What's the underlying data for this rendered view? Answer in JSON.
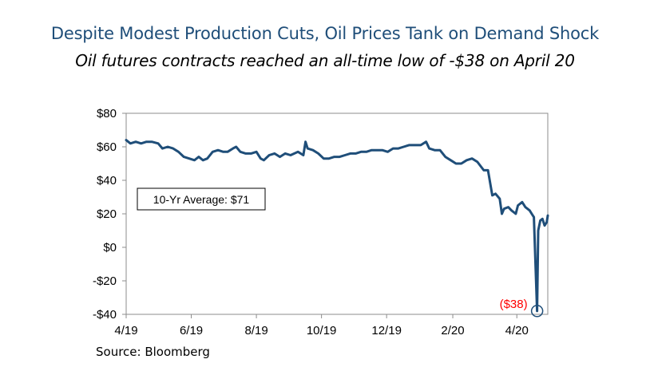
{
  "title": "Despite Modest Production Cuts, Oil Prices Tank on Demand Shock",
  "subtitle": "Oil futures contracts reached an all-time low of -$38 on April 20",
  "source": "Source: Bloomberg",
  "chart_data": {
    "type": "line",
    "title": "Despite Modest Production Cuts, Oil Prices Tank on Demand Shock",
    "subtitle": "Oil futures contracts reached an all-time low of -$38 on April 20",
    "xlabel": "",
    "ylabel": "",
    "ylim": [
      -40,
      80
    ],
    "yticks": [
      80,
      60,
      40,
      20,
      0,
      -20,
      -40
    ],
    "ytick_labels": [
      "$80",
      "$60",
      "$40",
      "$20",
      "$0",
      "-$20",
      "-$40"
    ],
    "xlim": [
      "2019-04-01",
      "2020-04-30"
    ],
    "xticks": [
      "2019-04-01",
      "2019-06-01",
      "2019-08-01",
      "2019-10-01",
      "2019-12-01",
      "2020-02-01",
      "2020-04-01"
    ],
    "xtick_labels": [
      "4/19",
      "6/19",
      "8/19",
      "10/19",
      "12/19",
      "2/20",
      "4/20"
    ],
    "grid": false,
    "line_color": "#1f4e79",
    "annotation_box": "10-Yr Average: $71",
    "low_label": "($38)",
    "low_label_color": "#ff0000",
    "low_point": {
      "x": "2020-04-20",
      "y": -38
    },
    "series": [
      {
        "values": [
          [
            "2019-04-01",
            64
          ],
          [
            "2019-04-05",
            62
          ],
          [
            "2019-04-10",
            63
          ],
          [
            "2019-04-15",
            62
          ],
          [
            "2019-04-20",
            63
          ],
          [
            "2019-04-25",
            63
          ],
          [
            "2019-05-01",
            62
          ],
          [
            "2019-05-05",
            59
          ],
          [
            "2019-05-10",
            60
          ],
          [
            "2019-05-15",
            59
          ],
          [
            "2019-05-20",
            57
          ],
          [
            "2019-05-25",
            54
          ],
          [
            "2019-05-30",
            53
          ],
          [
            "2019-06-04",
            52
          ],
          [
            "2019-06-08",
            54
          ],
          [
            "2019-06-12",
            52
          ],
          [
            "2019-06-16",
            53
          ],
          [
            "2019-06-21",
            57
          ],
          [
            "2019-06-26",
            58
          ],
          [
            "2019-07-01",
            57
          ],
          [
            "2019-07-05",
            57
          ],
          [
            "2019-07-10",
            59
          ],
          [
            "2019-07-13",
            60
          ],
          [
            "2019-07-17",
            57
          ],
          [
            "2019-07-22",
            56
          ],
          [
            "2019-07-27",
            56
          ],
          [
            "2019-08-01",
            57
          ],
          [
            "2019-08-05",
            53
          ],
          [
            "2019-08-08",
            52
          ],
          [
            "2019-08-13",
            55
          ],
          [
            "2019-08-18",
            56
          ],
          [
            "2019-08-23",
            54
          ],
          [
            "2019-08-28",
            56
          ],
          [
            "2019-09-02",
            55
          ],
          [
            "2019-09-09",
            57
          ],
          [
            "2019-09-14",
            55
          ],
          [
            "2019-09-16",
            63
          ],
          [
            "2019-09-18",
            59
          ],
          [
            "2019-09-23",
            58
          ],
          [
            "2019-09-28",
            56
          ],
          [
            "2019-10-03",
            53
          ],
          [
            "2019-10-08",
            53
          ],
          [
            "2019-10-13",
            54
          ],
          [
            "2019-10-18",
            54
          ],
          [
            "2019-10-23",
            55
          ],
          [
            "2019-10-28",
            56
          ],
          [
            "2019-11-02",
            56
          ],
          [
            "2019-11-07",
            57
          ],
          [
            "2019-11-12",
            57
          ],
          [
            "2019-11-17",
            58
          ],
          [
            "2019-11-22",
            58
          ],
          [
            "2019-11-27",
            58
          ],
          [
            "2019-12-02",
            57
          ],
          [
            "2019-12-07",
            59
          ],
          [
            "2019-12-12",
            59
          ],
          [
            "2019-12-17",
            60
          ],
          [
            "2019-12-22",
            61
          ],
          [
            "2019-12-27",
            61
          ],
          [
            "2020-01-02",
            61
          ],
          [
            "2020-01-07",
            63
          ],
          [
            "2020-01-10",
            59
          ],
          [
            "2020-01-15",
            58
          ],
          [
            "2020-01-20",
            58
          ],
          [
            "2020-01-25",
            54
          ],
          [
            "2020-01-30",
            52
          ],
          [
            "2020-02-04",
            50
          ],
          [
            "2020-02-09",
            50
          ],
          [
            "2020-02-14",
            52
          ],
          [
            "2020-02-19",
            53
          ],
          [
            "2020-02-24",
            51
          ],
          [
            "2020-03-01",
            46
          ],
          [
            "2020-03-05",
            46
          ],
          [
            "2020-03-09",
            31
          ],
          [
            "2020-03-12",
            32
          ],
          [
            "2020-03-16",
            29
          ],
          [
            "2020-03-18",
            20
          ],
          [
            "2020-03-20",
            23
          ],
          [
            "2020-03-24",
            24
          ],
          [
            "2020-03-27",
            22
          ],
          [
            "2020-03-31",
            20
          ],
          [
            "2020-04-02",
            25
          ],
          [
            "2020-04-06",
            27
          ],
          [
            "2020-04-09",
            24
          ],
          [
            "2020-04-13",
            22
          ],
          [
            "2020-04-15",
            20
          ],
          [
            "2020-04-17",
            18
          ],
          [
            "2020-04-20",
            -38
          ],
          [
            "2020-04-21",
            10
          ],
          [
            "2020-04-23",
            16
          ],
          [
            "2020-04-25",
            17
          ],
          [
            "2020-04-27",
            13
          ],
          [
            "2020-04-29",
            15
          ],
          [
            "2020-04-30",
            19
          ]
        ]
      }
    ]
  }
}
